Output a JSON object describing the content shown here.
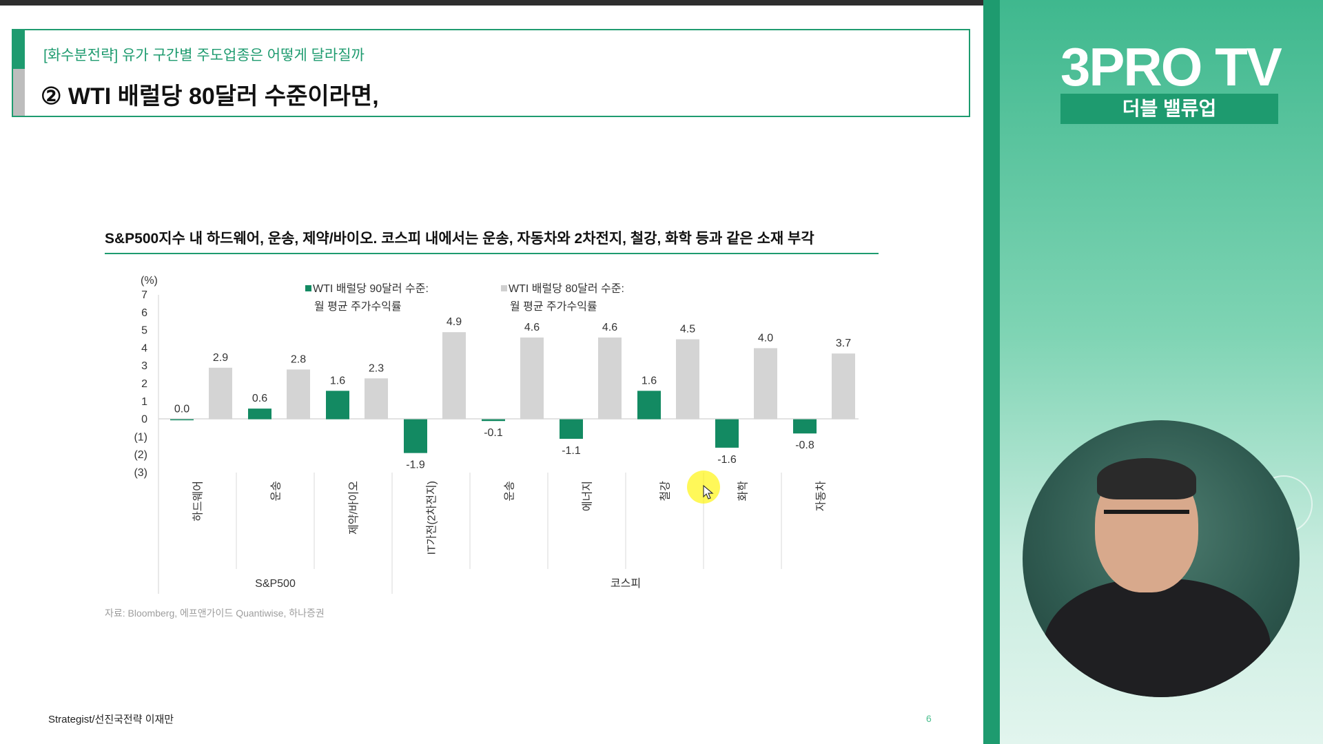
{
  "header": {
    "subtitle": "[화수분전략] 유가 구간별 주도업종은 어떻게 달라질까",
    "title": "② WTI 배럴당 80달러 수준이라면,"
  },
  "chart_headline": "S&P500지수 내 하드웨어, 운송, 제약/바이오. 코스피 내에서는 운송, 자동차와 2차전지, 철강, 화학 등과 같은 소재 부각",
  "source_note": "자료: Bloomberg, 에프앤가이드 Quantiwise, 하나증권",
  "footer": {
    "author": "Strategist/선진국전략 이재만",
    "page": "6"
  },
  "side_panel": {
    "brand": "3PRO TV",
    "program": "더블 밸류업"
  },
  "colors": {
    "accent": "#1e9b6f",
    "series_90": "#138a62",
    "series_80": "#d4d4d4"
  },
  "chart_data": {
    "type": "bar",
    "ylabel": "(%)",
    "ylim": [
      -3,
      7
    ],
    "yticks": [
      "7",
      "6",
      "5",
      "4",
      "3",
      "2",
      "1",
      "0",
      "(1)",
      "(2)",
      "(3)"
    ],
    "categories": [
      "하드웨어",
      "운송",
      "제약/바이오",
      "IT가전(2차전지)",
      "운송",
      "에너지",
      "철강",
      "화학",
      "자동차"
    ],
    "groups": [
      {
        "name": "S&P500",
        "count": 3
      },
      {
        "name": "코스피",
        "count": 6
      }
    ],
    "series": [
      {
        "name": "WTI 배럴당 90달러 수준: 월 평균 주가수익률",
        "legend_line1": "WTI 배럴당 90달러 수준:",
        "legend_line2": "월 평균 주가수익률",
        "values": [
          0.0,
          0.6,
          1.6,
          -1.9,
          -0.1,
          -1.1,
          1.6,
          -1.6,
          -0.8
        ],
        "labels": [
          "0.0",
          "0.6",
          "1.6",
          "-1.9",
          "-0.1",
          "-1.1",
          "1.6",
          "-1.6",
          "-0.8"
        ]
      },
      {
        "name": "WTI 배럴당 80달러 수준: 월 평균 주가수익률",
        "legend_line1": "WTI 배럴당 80달러 수준:",
        "legend_line2": "월 평균 주가수익률",
        "values": [
          2.9,
          2.8,
          2.3,
          4.9,
          4.6,
          4.6,
          4.5,
          4.0,
          3.7
        ],
        "labels": [
          "2.9",
          "2.8",
          "2.3",
          "4.9",
          "4.6",
          "4.6",
          "4.5",
          "4.0",
          "3.7"
        ]
      }
    ],
    "grid": false,
    "legend": "top"
  }
}
